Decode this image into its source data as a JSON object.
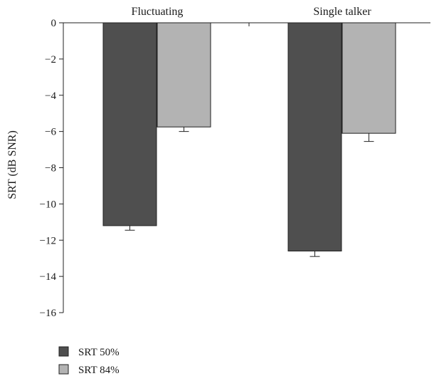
{
  "chart_data": {
    "type": "bar",
    "categories": [
      "Fluctuating",
      "Single talker"
    ],
    "series": [
      {
        "name": "SRT 50%",
        "values": [
          -11.2,
          -12.6
        ],
        "errors": [
          0.25,
          0.3
        ],
        "color": "#4f4f4f"
      },
      {
        "name": "SRT 84%",
        "values": [
          -5.75,
          -6.1
        ],
        "errors": [
          0.25,
          0.45
        ],
        "color": "#b3b3b3"
      }
    ],
    "xlabel": "",
    "ylabel": "SRT (dB SNR)",
    "ylim": [
      -16,
      0
    ],
    "yticks": [
      0,
      -2,
      -4,
      -6,
      -8,
      -10,
      -12,
      -14,
      -16
    ],
    "ytick_labels": [
      "0",
      "−2",
      "−4",
      "−6",
      "−8",
      "−10",
      "−12",
      "−14",
      "−16"
    ],
    "category_label_position": "top",
    "grid": false,
    "legend_position": "bottom-left"
  }
}
